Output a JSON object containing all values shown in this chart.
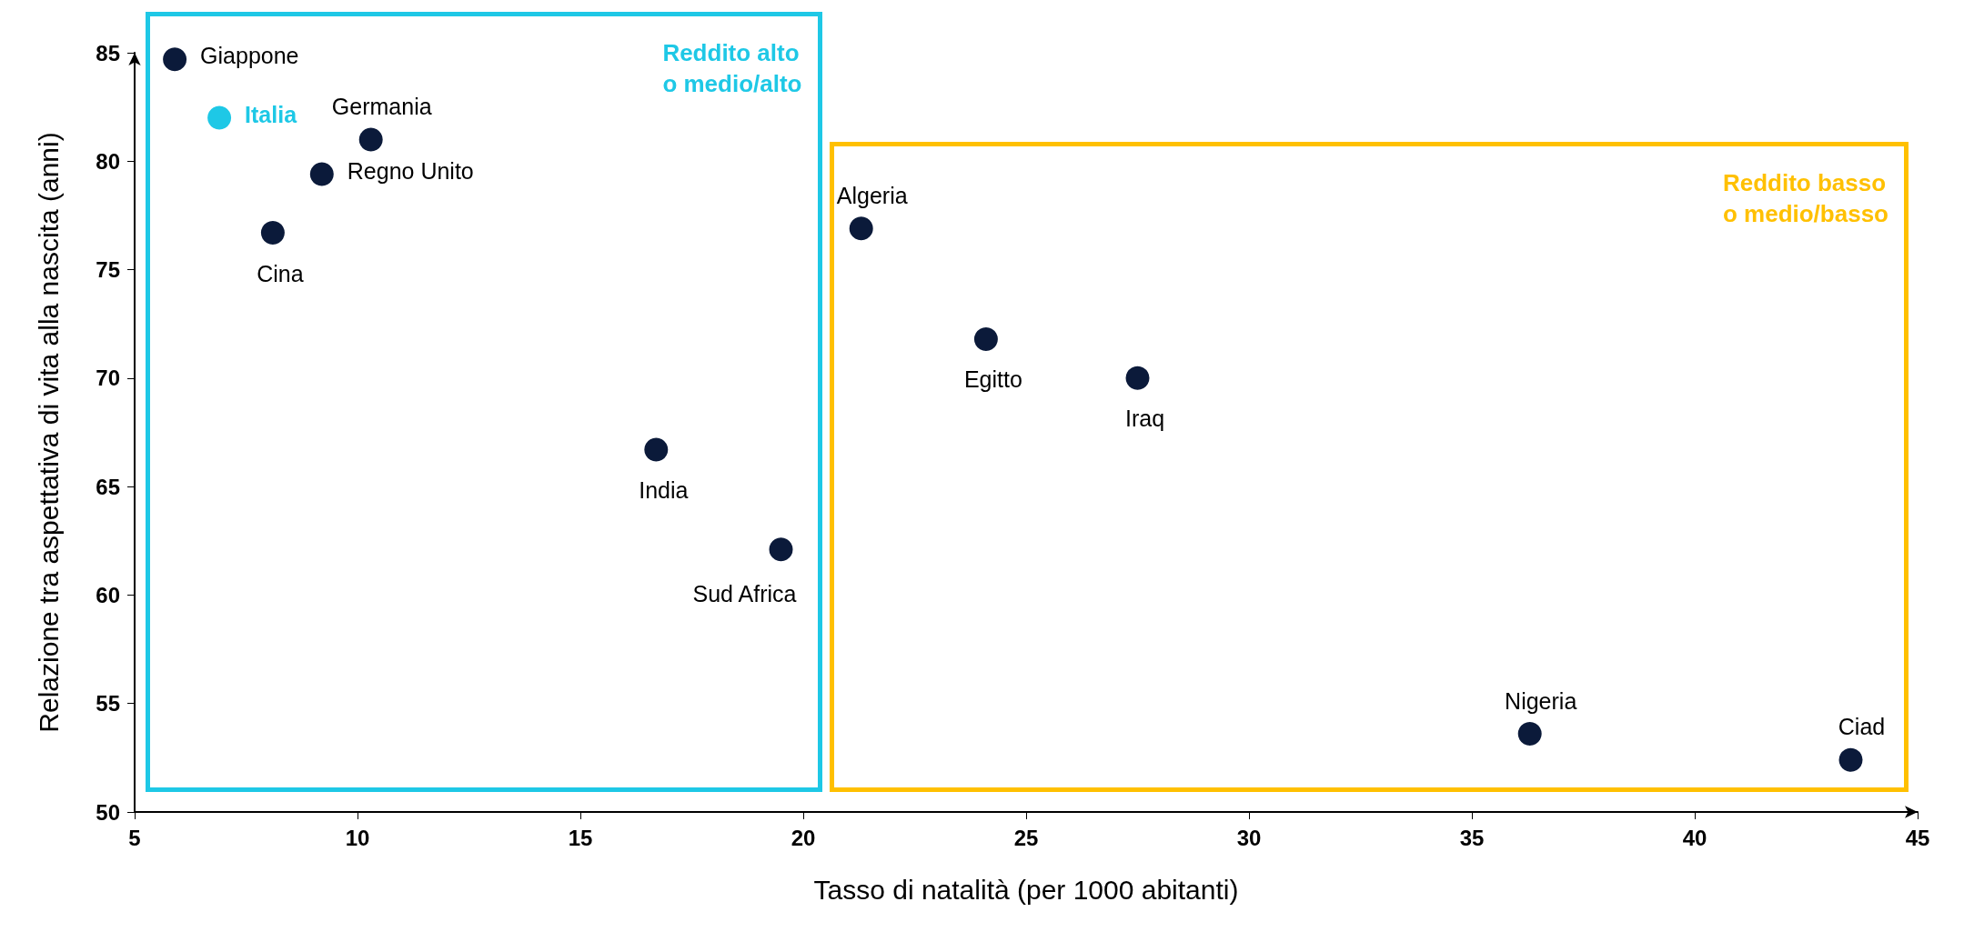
{
  "chart_data": {
    "type": "scatter",
    "xlabel": "Tasso di natalità (per 1000 abitanti)",
    "ylabel": "Relazione tra aspettativa di vita alla nascita (anni)",
    "xlim": [
      5,
      45
    ],
    "xticks": [
      5,
      10,
      15,
      20,
      25,
      30,
      35,
      40,
      45
    ],
    "ylim": [
      50,
      85
    ],
    "yticks": [
      50,
      55,
      60,
      65,
      70,
      75,
      80,
      85
    ],
    "grid": false,
    "marker": "circle",
    "annotations": [
      "Reddito alto\no medio/alto",
      "Reddito basso\no medio/basso"
    ],
    "series": [
      {
        "color": "#0b1a3a",
        "x": [
          5.9,
          6.9,
          10.3,
          9.2,
          8.1,
          16.7,
          19.5
        ],
        "values": [
          84.7,
          82.0,
          81.0,
          79.4,
          76.7,
          66.7,
          62.1
        ],
        "colors": [
          "#0b1a3a",
          "#1ec8e6",
          "#0b1a3a",
          "#0b1a3a",
          "#0b1a3a",
          "#0b1a3a",
          "#0b1a3a"
        ],
        "value_labels": [
          "Giappone",
          "Italia",
          "Germania",
          "Regno Unito",
          "Cina",
          "India",
          "Sud Africa"
        ]
      },
      {
        "color": "#0b1a3a",
        "x": [
          21.3,
          24.1,
          27.5,
          36.3,
          43.5
        ],
        "values": [
          76.9,
          71.8,
          70.0,
          53.6,
          52.4
        ],
        "colors": [
          "#0b1a3a",
          "#0b1a3a",
          "#0b1a3a",
          "#0b1a3a",
          "#0b1a3a"
        ],
        "value_labels": [
          "Algeria",
          "Egitto",
          "Iraq",
          "Nigeria",
          "Ciad"
        ]
      }
    ]
  }
}
